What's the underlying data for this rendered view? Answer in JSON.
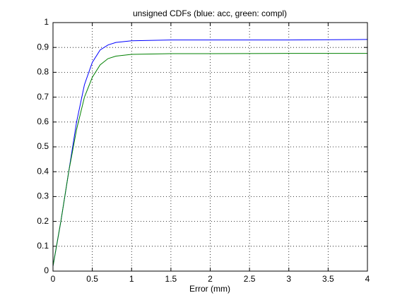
{
  "chart_data": {
    "type": "line",
    "title": "unsigned CDFs (blue: acc, green: compl)",
    "x_label": "Error (mm)",
    "x": [
      0,
      0.1,
      0.2,
      0.3,
      0.4,
      0.5,
      0.6,
      0.7,
      0.8,
      1.0,
      1.5,
      2,
      3,
      4
    ],
    "series": [
      {
        "name": "acc",
        "color": "#0000ff",
        "values": [
          0.02,
          0.2,
          0.4,
          0.6,
          0.75,
          0.84,
          0.89,
          0.91,
          0.92,
          0.927,
          0.93,
          0.93,
          0.93,
          0.932
        ]
      },
      {
        "name": "compl",
        "color": "#008000",
        "values": [
          0.02,
          0.2,
          0.4,
          0.57,
          0.7,
          0.78,
          0.83,
          0.855,
          0.865,
          0.872,
          0.875,
          0.875,
          0.876,
          0.876
        ]
      }
    ],
    "xlim": [
      0,
      4
    ],
    "ylim": [
      0,
      1
    ],
    "xticks": [
      0,
      0.5,
      1,
      1.5,
      2,
      2.5,
      3,
      3.5,
      4
    ],
    "yticks": [
      0,
      0.1,
      0.2,
      0.3,
      0.4,
      0.5,
      0.6,
      0.7,
      0.8,
      0.9,
      1
    ],
    "grid": true
  }
}
